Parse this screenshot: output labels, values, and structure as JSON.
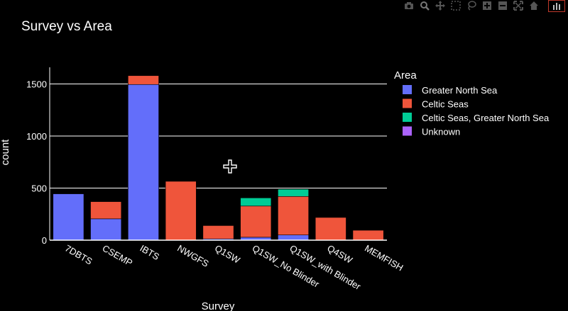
{
  "toolbar": {
    "icons": [
      "camera-icon",
      "zoom-icon",
      "pan-icon",
      "box-select-icon",
      "lasso-select-icon",
      "zoom-in-icon",
      "zoom-out-icon",
      "autoscale-icon",
      "reset-axes-icon",
      "plotly-logo-icon"
    ]
  },
  "colors": {
    "background": "#000000",
    "grid": "#ffffff",
    "text": "#ffffff"
  },
  "chart_data": {
    "type": "bar",
    "barmode": "stack",
    "title": "Survey vs Area",
    "xlabel": "Survey",
    "ylabel": "count",
    "ylim": [
      0,
      1660
    ],
    "yticks": [
      0,
      500,
      1000,
      1500
    ],
    "ytick_labels": [
      "0",
      "500",
      "1000",
      "1500"
    ],
    "grid": true,
    "legend_title": "Area",
    "legend_placement": "right",
    "categories": [
      "7DBTS",
      "CSEMP",
      "IBTS",
      "NWGFS",
      "Q1SW",
      "Q1SW_No Blinder",
      "Q1SW_with Blinder",
      "Q4SW",
      "MEMFISH"
    ],
    "series": [
      {
        "name": "Greater North Sea",
        "color": "#636efa",
        "values": [
          445,
          205,
          1495,
          0,
          12,
          28,
          50,
          0,
          0
        ]
      },
      {
        "name": "Celtic Seas",
        "color": "#ef553b",
        "values": [
          0,
          165,
          85,
          565,
          128,
          300,
          370,
          218,
          95
        ]
      },
      {
        "name": "Celtic Seas, Greater North Sea",
        "color": "#00cc96",
        "values": [
          0,
          0,
          0,
          0,
          0,
          78,
          70,
          0,
          0
        ]
      },
      {
        "name": "Unknown",
        "color": "#ab63fa",
        "values": [
          0,
          0,
          0,
          0,
          0,
          0,
          0,
          0,
          0
        ]
      }
    ]
  }
}
